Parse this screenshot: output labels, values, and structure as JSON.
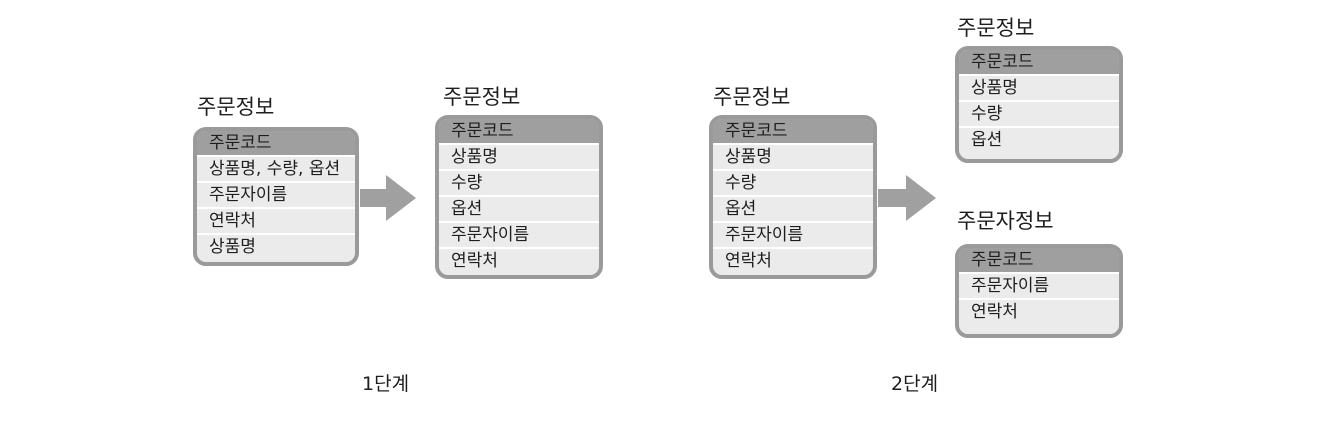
{
  "step1": {
    "before": {
      "title": "주문정보",
      "rows": [
        "주문코드",
        "상품명, 수량, 옵션",
        "주문자이름",
        "연락처",
        "상품명"
      ]
    },
    "after": {
      "title": "주문정보",
      "rows": [
        "주문코드",
        "상품명",
        "수량",
        "옵션",
        "주문자이름",
        "연락처"
      ]
    },
    "label": "1단계"
  },
  "step2": {
    "before": {
      "title": "주문정보",
      "rows": [
        "주문코드",
        "상품명",
        "수량",
        "옵션",
        "주문자이름",
        "연락처"
      ]
    },
    "order_table": {
      "title": "주문정보",
      "rows": [
        "주문코드",
        "상품명",
        "수량",
        "옵션"
      ]
    },
    "customer_table": {
      "title": "주문자정보",
      "rows": [
        "주문코드",
        "주문자이름",
        "연락처"
      ]
    },
    "label": "2단계"
  },
  "colors": {
    "key_row": "#9f9f9f",
    "row": "#ebebeb",
    "border": "#9a9a9a",
    "arrow": "#a0a0a0"
  }
}
